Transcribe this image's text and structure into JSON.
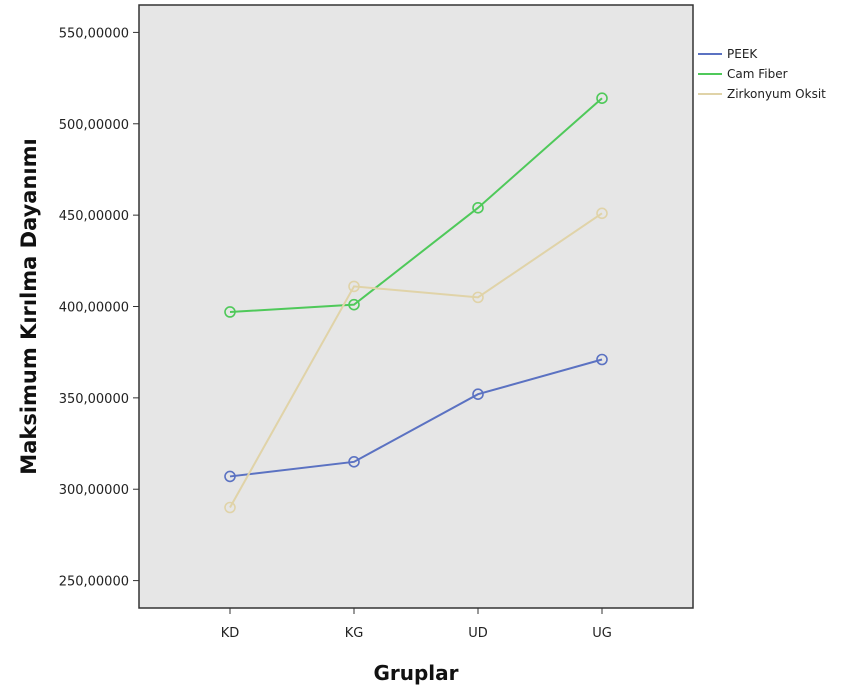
{
  "chart_data": {
    "type": "line",
    "title": "",
    "xlabel": "Gruplar",
    "ylabel": "Maksimum Kırılma Dayanımı",
    "categories": [
      "KD",
      "KG",
      "UD",
      "UG"
    ],
    "y_ticks": [
      {
        "value": 250,
        "label": "250,00000"
      },
      {
        "value": 300,
        "label": "300,00000"
      },
      {
        "value": 350,
        "label": "350,00000"
      },
      {
        "value": 400,
        "label": "400,00000"
      },
      {
        "value": 450,
        "label": "450,00000"
      },
      {
        "value": 500,
        "label": "500,00000"
      },
      {
        "value": 550,
        "label": "550,00000"
      }
    ],
    "ylim": [
      235,
      565
    ],
    "grid": false,
    "legend_position": "right",
    "background_color": "#e6e6e6",
    "series": [
      {
        "name": "PEEK",
        "color": "#5b72c2",
        "values": [
          307,
          315,
          352,
          371
        ]
      },
      {
        "name": "Cam Fiber",
        "color": "#4fc95a",
        "values": [
          397,
          401,
          454,
          514
        ]
      },
      {
        "name": "Zirkonyum Oksit",
        "color": "#e0d3a8",
        "values": [
          290,
          411,
          405,
          451
        ]
      }
    ]
  }
}
